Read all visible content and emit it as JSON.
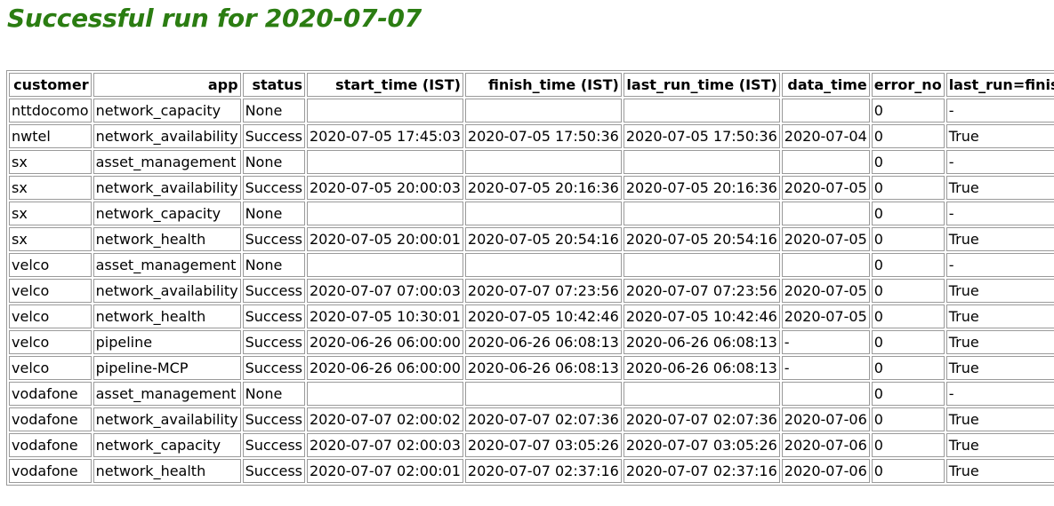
{
  "title": "Successful run for 2020-07-07",
  "table": {
    "headers": [
      "customer",
      "app",
      "status",
      "start_time (IST)",
      "finish_time (IST)",
      "last_run_time (IST)",
      "data_time",
      "error_no",
      "last_run=finish"
    ],
    "rows": [
      [
        "nttdocomo",
        "network_capacity",
        "None",
        "",
        "",
        "",
        "",
        "0",
        "-"
      ],
      [
        "nwtel",
        "network_availability",
        "Success",
        "2020-07-05 17:45:03",
        "2020-07-05 17:50:36",
        "2020-07-05 17:50:36",
        "2020-07-04",
        "0",
        "True"
      ],
      [
        "sx",
        "asset_management",
        "None",
        "",
        "",
        "",
        "",
        "0",
        "-"
      ],
      [
        "sx",
        "network_availability",
        "Success",
        "2020-07-05 20:00:03",
        "2020-07-05 20:16:36",
        "2020-07-05 20:16:36",
        "2020-07-05",
        "0",
        "True"
      ],
      [
        "sx",
        "network_capacity",
        "None",
        "",
        "",
        "",
        "",
        "0",
        "-"
      ],
      [
        "sx",
        "network_health",
        "Success",
        "2020-07-05 20:00:01",
        "2020-07-05 20:54:16",
        "2020-07-05 20:54:16",
        "2020-07-05",
        "0",
        "True"
      ],
      [
        "velco",
        "asset_management",
        "None",
        "",
        "",
        "",
        "",
        "0",
        "-"
      ],
      [
        "velco",
        "network_availability",
        "Success",
        "2020-07-07 07:00:03",
        "2020-07-07 07:23:56",
        "2020-07-07 07:23:56",
        "2020-07-05",
        "0",
        "True"
      ],
      [
        "velco",
        "network_health",
        "Success",
        "2020-07-05 10:30:01",
        "2020-07-05 10:42:46",
        "2020-07-05 10:42:46",
        "2020-07-05",
        "0",
        "True"
      ],
      [
        "velco",
        "pipeline",
        "Success",
        "2020-06-26 06:00:00",
        "2020-06-26 06:08:13",
        "2020-06-26 06:08:13",
        "-",
        "0",
        "True"
      ],
      [
        "velco",
        "pipeline-MCP",
        "Success",
        "2020-06-26 06:00:00",
        "2020-06-26 06:08:13",
        "2020-06-26 06:08:13",
        "-",
        "0",
        "True"
      ],
      [
        "vodafone",
        "asset_management",
        "None",
        "",
        "",
        "",
        "",
        "0",
        "-"
      ],
      [
        "vodafone",
        "network_availability",
        "Success",
        "2020-07-07 02:00:02",
        "2020-07-07 02:07:36",
        "2020-07-07 02:07:36",
        "2020-07-06",
        "0",
        "True"
      ],
      [
        "vodafone",
        "network_capacity",
        "Success",
        "2020-07-07 02:00:03",
        "2020-07-07 03:05:26",
        "2020-07-07 03:05:26",
        "2020-07-06",
        "0",
        "True"
      ],
      [
        "vodafone",
        "network_health",
        "Success",
        "2020-07-07 02:00:01",
        "2020-07-07 02:37:16",
        "2020-07-07 02:37:16",
        "2020-07-06",
        "0",
        "True"
      ]
    ]
  },
  "colors": {
    "title": "#2b7d12",
    "border": "#9a9a9a"
  }
}
